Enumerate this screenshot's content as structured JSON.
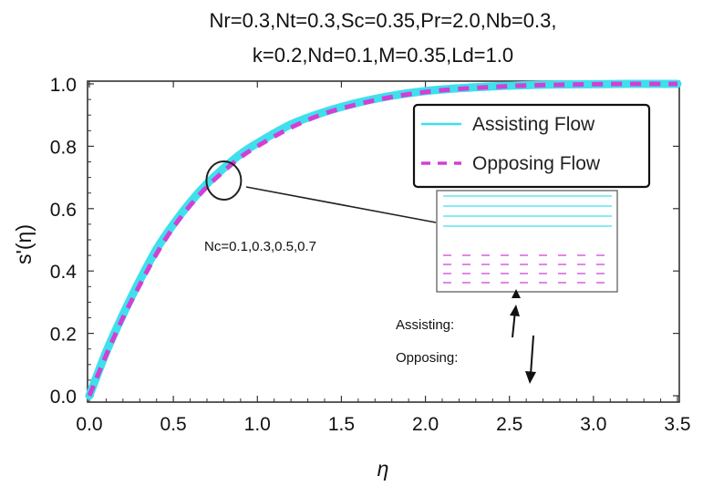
{
  "chart_data": {
    "type": "line",
    "title_lines": [
      "Nr=0.3,Nt=0.3,Sc=0.35,Pr=2.0,Nb=0.3,",
      "k=0.2,Nd=0.1,M=0.35,Ld=1.0"
    ],
    "xlabel": "η",
    "ylabel": "s'(η)",
    "xlim": [
      0,
      3.5
    ],
    "ylim": [
      0,
      1.0
    ],
    "xticks": [
      "0.0",
      "0.5",
      "1.0",
      "1.5",
      "2.0",
      "2.5",
      "3.0",
      "3.5"
    ],
    "yticks": [
      "0.0",
      "0.2",
      "0.4",
      "0.6",
      "0.8",
      "1.0"
    ],
    "grid": false,
    "legend_position": "top-right",
    "legend": [
      "Assisting Flow",
      "Opposing Flow"
    ],
    "colors": {
      "assisting": "#3fe0ec",
      "opposing": "#d23fd6"
    },
    "x": [
      0,
      0.1,
      0.2,
      0.3,
      0.4,
      0.5,
      0.6,
      0.7,
      0.8,
      0.9,
      1.0,
      1.2,
      1.4,
      1.6,
      1.8,
      2.0,
      2.2,
      2.4,
      2.6,
      2.8,
      3.0,
      3.2,
      3.5
    ],
    "series": [
      {
        "name": "Assisting Flow",
        "style": "solid",
        "values": [
          0.0,
          0.14,
          0.26,
          0.37,
          0.47,
          0.55,
          0.62,
          0.68,
          0.73,
          0.775,
          0.81,
          0.87,
          0.91,
          0.94,
          0.962,
          0.977,
          0.986,
          0.992,
          0.996,
          0.998,
          0.999,
          1.0,
          1.0
        ]
      },
      {
        "name": "Opposing Flow",
        "style": "dashed",
        "values": [
          0.0,
          0.13,
          0.25,
          0.355,
          0.455,
          0.54,
          0.61,
          0.67,
          0.72,
          0.765,
          0.8,
          0.86,
          0.905,
          0.935,
          0.958,
          0.974,
          0.984,
          0.99,
          0.995,
          0.997,
          0.999,
          1.0,
          1.0
        ]
      }
    ],
    "annotations": {
      "parameter_label": "Nc=0.1,0.3,0.5,0.7",
      "assisting_label": "Assisting:",
      "opposing_label": "Opposing:",
      "circle_center": {
        "x": 0.8,
        "y": 0.69
      }
    }
  }
}
